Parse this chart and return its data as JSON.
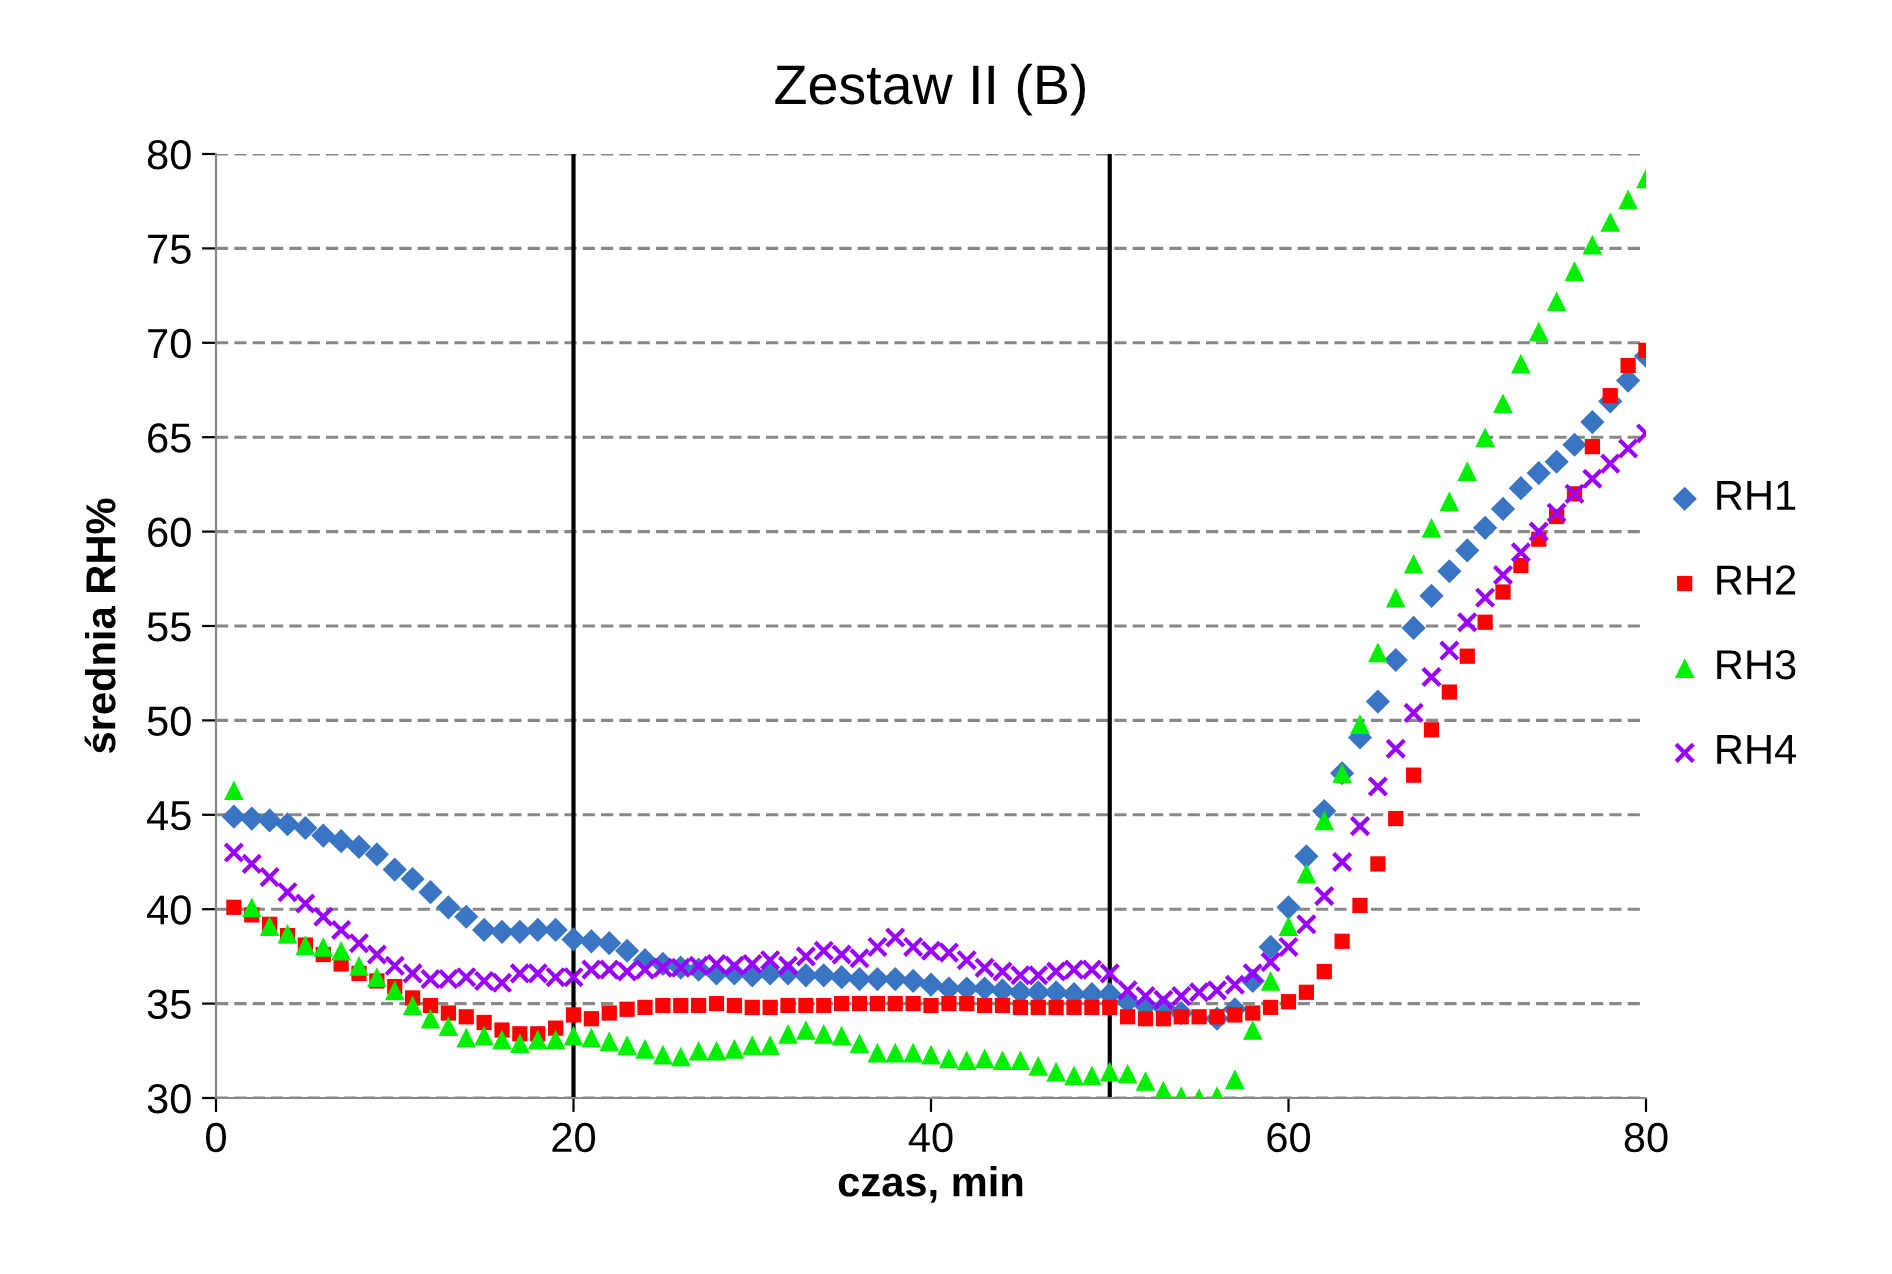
{
  "chart_data": {
    "type": "scatter",
    "title": "Zestaw II (B)",
    "xlabel": "czas, min",
    "ylabel": "średnia RH%",
    "x": [
      1,
      2,
      3,
      4,
      5,
      6,
      7,
      8,
      9,
      10,
      11,
      12,
      13,
      14,
      15,
      16,
      17,
      18,
      19,
      20,
      21,
      22,
      23,
      24,
      25,
      26,
      27,
      28,
      29,
      30,
      31,
      32,
      33,
      34,
      35,
      36,
      37,
      38,
      39,
      40,
      41,
      42,
      43,
      44,
      45,
      46,
      47,
      48,
      49,
      50,
      51,
      52,
      53,
      54,
      55,
      56,
      57,
      58,
      59,
      60,
      61,
      62,
      63,
      64,
      65,
      66,
      67,
      68,
      69,
      70,
      71,
      72,
      73,
      74,
      75,
      76,
      77,
      78,
      79,
      80
    ],
    "series": [
      {
        "name": "RH1",
        "color": "#3a75c4",
        "marker": "diamond",
        "values": [
          44.9,
          44.8,
          44.7,
          44.5,
          44.3,
          43.9,
          43.6,
          43.3,
          42.9,
          42.1,
          41.6,
          40.9,
          40.1,
          39.6,
          38.9,
          38.8,
          38.8,
          38.9,
          38.9,
          38.4,
          38.3,
          38.2,
          37.8,
          37.3,
          37.1,
          36.9,
          36.8,
          36.6,
          36.6,
          36.5,
          36.6,
          36.6,
          36.5,
          36.5,
          36.4,
          36.3,
          36.3,
          36.3,
          36.2,
          36.0,
          35.8,
          35.8,
          35.8,
          35.7,
          35.6,
          35.6,
          35.6,
          35.5,
          35.5,
          35.5,
          35.1,
          34.9,
          34.8,
          34.5,
          null,
          34.2,
          34.7,
          36.2,
          38.0,
          40.1,
          42.8,
          45.2,
          47.2,
          49.1,
          51.0,
          53.2,
          54.9,
          56.6,
          57.9,
          59.0,
          60.2,
          61.2,
          62.3,
          63.1,
          63.7,
          64.6,
          65.8,
          66.9,
          68.0,
          69.3
        ]
      },
      {
        "name": "RH2",
        "color": "#ff0000",
        "marker": "square",
        "values": [
          40.1,
          39.7,
          39.2,
          38.6,
          38.1,
          37.6,
          37.1,
          36.6,
          36.2,
          35.9,
          35.3,
          34.9,
          34.5,
          34.3,
          34.0,
          33.6,
          33.4,
          33.4,
          33.7,
          34.4,
          34.2,
          34.5,
          34.7,
          34.8,
          34.9,
          34.9,
          34.9,
          35.0,
          34.9,
          34.8,
          34.8,
          34.9,
          34.9,
          34.9,
          35.0,
          35.0,
          35.0,
          35.0,
          35.0,
          34.9,
          35.0,
          35.0,
          34.9,
          34.9,
          34.8,
          34.8,
          34.8,
          34.8,
          34.8,
          34.8,
          34.3,
          34.2,
          34.2,
          34.3,
          34.3,
          34.3,
          34.4,
          34.5,
          34.8,
          35.1,
          35.6,
          36.7,
          38.3,
          40.2,
          42.4,
          44.8,
          47.1,
          49.5,
          51.5,
          53.4,
          55.2,
          56.8,
          58.2,
          59.6,
          60.8,
          62.0,
          64.5,
          67.2,
          68.8,
          69.6
        ]
      },
      {
        "name": "RH3",
        "color": "#00ee00",
        "marker": "triangle",
        "values": [
          46.3,
          40.1,
          39.1,
          38.7,
          38.1,
          38.0,
          37.8,
          37.0,
          36.4,
          35.7,
          34.9,
          34.2,
          33.8,
          33.2,
          33.3,
          33.1,
          32.9,
          33.1,
          33.1,
          33.3,
          33.2,
          33.0,
          32.8,
          32.6,
          32.3,
          32.2,
          32.5,
          32.5,
          32.6,
          32.8,
          32.8,
          33.4,
          33.6,
          33.4,
          33.3,
          32.9,
          32.4,
          32.4,
          32.4,
          32.3,
          32.1,
          32.0,
          32.1,
          32.0,
          32.0,
          31.7,
          31.4,
          31.2,
          31.2,
          31.4,
          31.3,
          30.9,
          30.4,
          30.1,
          30.0,
          30.1,
          31.0,
          33.6,
          36.2,
          39.1,
          41.9,
          44.7,
          47.2,
          49.8,
          53.6,
          56.5,
          58.3,
          60.2,
          61.6,
          63.2,
          65.0,
          66.8,
          68.9,
          70.6,
          72.2,
          73.8,
          75.2,
          76.4,
          77.6,
          78.7
        ]
      },
      {
        "name": "RH4",
        "color": "#9900ff",
        "marker": "cross",
        "values": [
          43.0,
          42.4,
          41.7,
          40.9,
          40.3,
          39.6,
          38.9,
          38.2,
          37.6,
          37.0,
          36.6,
          36.3,
          36.3,
          36.4,
          36.2,
          36.1,
          36.6,
          36.6,
          36.4,
          36.4,
          36.8,
          36.8,
          36.7,
          36.8,
          36.9,
          36.9,
          37.0,
          37.1,
          37.0,
          37.1,
          37.3,
          37.0,
          37.5,
          37.8,
          37.6,
          37.4,
          38.0,
          38.5,
          38.0,
          37.8,
          37.7,
          37.3,
          36.9,
          36.7,
          36.5,
          36.5,
          36.7,
          36.8,
          36.8,
          36.6,
          35.7,
          35.4,
          35.2,
          35.4,
          35.6,
          35.7,
          36.0,
          36.6,
          37.2,
          38.0,
          39.2,
          40.7,
          42.5,
          44.4,
          46.5,
          48.5,
          50.4,
          52.3,
          53.7,
          55.2,
          56.5,
          57.7,
          58.9,
          60.0,
          61.0,
          62.0,
          62.8,
          63.6,
          64.4,
          65.2
        ]
      }
    ],
    "xlim": [
      0,
      80
    ],
    "xticks": [
      0,
      20,
      40,
      60,
      80
    ],
    "ylim": [
      30,
      80
    ],
    "yticks": [
      30,
      35,
      40,
      45,
      50,
      55,
      60,
      65,
      70,
      75,
      80
    ],
    "grid": "y",
    "legend": "right",
    "ref_lines": [
      {
        "axis": "x",
        "value": 20,
        "color": "#000000"
      },
      {
        "axis": "x",
        "value": 50,
        "color": "#000000"
      }
    ]
  }
}
